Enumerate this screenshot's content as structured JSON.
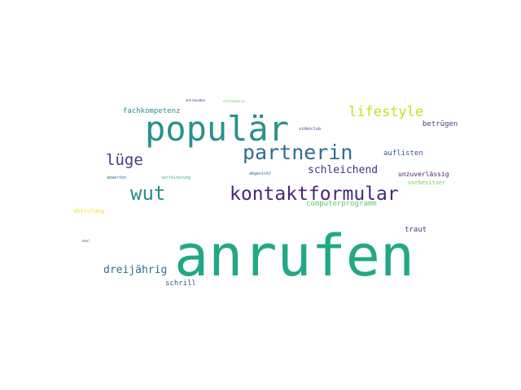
{
  "words": [
    {
      "text": "anrufen",
      "color": "#22a884"
    },
    {
      "text": "populär",
      "color": "#2a918b"
    },
    {
      "text": "kontaktformular",
      "color": "#482777"
    },
    {
      "text": "partnerin",
      "color": "#2f6e8e"
    },
    {
      "text": "wut",
      "color": "#2c8c8d"
    },
    {
      "text": "lüge",
      "color": "#443a83"
    },
    {
      "text": "lifestyle",
      "color": "#c7e020"
    },
    {
      "text": "schleichend",
      "color": "#46327e"
    },
    {
      "text": "dreijährig",
      "color": "#2d708e"
    },
    {
      "text": "fachkompetenz",
      "color": "#2a918b"
    },
    {
      "text": "auflisten",
      "color": "#3b528b"
    },
    {
      "text": "betrügen",
      "color": "#414487"
    },
    {
      "text": "unzuverlässig",
      "color": "#482173"
    },
    {
      "text": "computerprogramm",
      "color": "#5ec962"
    },
    {
      "text": "traut",
      "color": "#46337f"
    },
    {
      "text": "schrill",
      "color": "#3a548c"
    },
    {
      "text": "vorbesitzer",
      "color": "#7ad151"
    },
    {
      "text": "abstufung",
      "color": "#f2e51d"
    },
    {
      "text": "verfeinerung",
      "color": "#35b779"
    },
    {
      "text": "abwerten",
      "color": "#2c728e"
    },
    {
      "text": "abgenickt",
      "color": "#31688e"
    },
    {
      "text": "videoclub",
      "color": "#3e4a89"
    },
    {
      "text": "antreunden",
      "color": "#472c7a"
    },
    {
      "text": "stufenweise",
      "color": "#5ec962"
    },
    {
      "text": "ekel",
      "color": "#3b528b"
    }
  ]
}
